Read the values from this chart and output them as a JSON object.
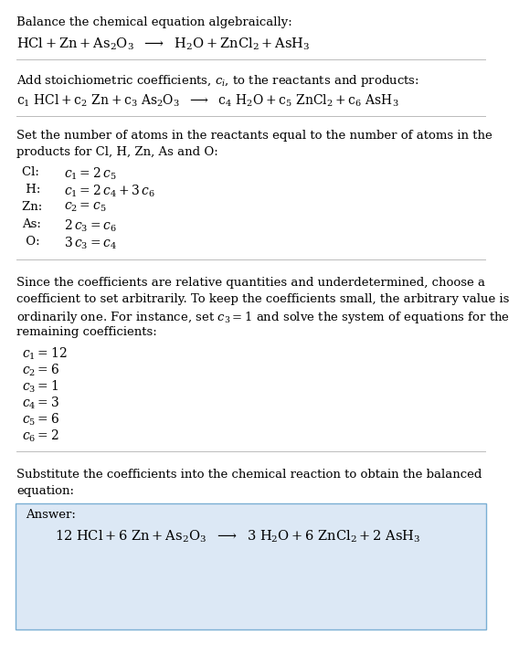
{
  "bg_color": "#ffffff",
  "text_color": "#000000",
  "box_facecolor": "#dce8f5",
  "box_edgecolor": "#7aafd4",
  "title1": "Balance the chemical equation algebraically:",
  "eq1": "$\\mathrm{HCl + Zn + As_2O_3 \\ \\ \\longrightarrow \\ \\ H_2O + ZnCl_2 + AsH_3}$",
  "title2_a": "Add stoichiometric coefficients, $c_i$, to the reactants and products:",
  "eq2": "$\\mathrm{c_1\\ HCl + c_2\\ Zn + c_3\\ As_2O_3 \\ \\ \\longrightarrow \\ \\ c_4\\ H_2O + c_5\\ ZnCl_2 + c_6\\ AsH_3}$",
  "title3_a": "Set the number of atoms in the reactants equal to the number of atoms in the",
  "title3_b": "products for Cl, H, Zn, As and O:",
  "atom_eqs": [
    [
      "Cl: ",
      "$c_1 = 2\\,c_5$"
    ],
    [
      " H: ",
      "$c_1 = 2\\,c_4 + 3\\,c_6$"
    ],
    [
      "Zn: ",
      "$c_2 = c_5$"
    ],
    [
      "As: ",
      "$2\\,c_3 = c_6$"
    ],
    [
      " O: ",
      "$3\\,c_3 = c_4$"
    ]
  ],
  "title4_a": "Since the coefficients are relative quantities and underdetermined, choose a",
  "title4_b": "coefficient to set arbitrarily. To keep the coefficients small, the arbitrary value is",
  "title4_c": "ordinarily one. For instance, set $c_3 = 1$ and solve the system of equations for the",
  "title4_d": "remaining coefficients:",
  "coeff_list": [
    "$c_1 = 12$",
    "$c_2 = 6$",
    "$c_3 = 1$",
    "$c_4 = 3$",
    "$c_5 = 6$",
    "$c_6 = 2$"
  ],
  "title5_a": "Substitute the coefficients into the chemical reaction to obtain the balanced",
  "title5_b": "equation:",
  "answer_label": "Answer:",
  "answer_eq": "$\\mathrm{12\\ HCl + 6\\ Zn + As_2O_3 \\ \\ \\longrightarrow \\ \\ 3\\ H_2O + 6\\ ZnCl_2 + 2\\ AsH_3}$"
}
